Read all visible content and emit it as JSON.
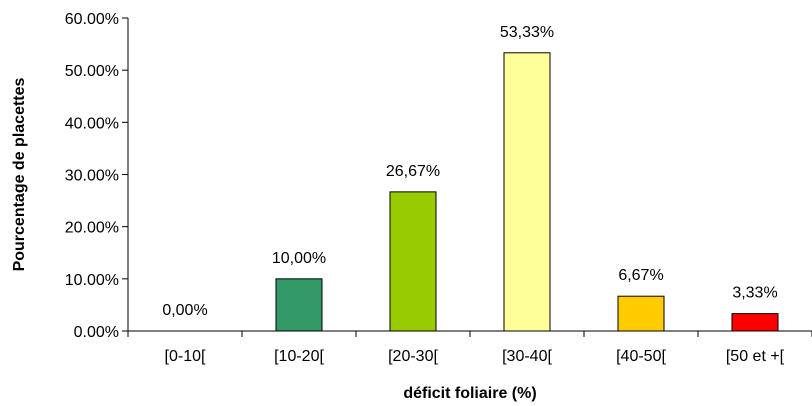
{
  "chart_data": {
    "type": "bar",
    "title": "",
    "xlabel": "déficit foliaire (%)",
    "ylabel": "Pourcentage de placettes",
    "categories": [
      "[0-10[",
      "[10-20[",
      "[20-30[",
      "[30-40[",
      "[40-50[",
      "[50 et +["
    ],
    "values": [
      0.0,
      10.0,
      26.67,
      53.33,
      6.67,
      3.33
    ],
    "data_labels": [
      "0,00%",
      "10,00%",
      "26,67%",
      "53,33%",
      "6,67%",
      "3,33%"
    ],
    "bar_colors": [
      "#ffffff",
      "#339966",
      "#99cc00",
      "#ffff99",
      "#ffcc00",
      "#ff0000"
    ],
    "ylim": [
      0,
      60
    ],
    "y_ticks": [
      0,
      10,
      20,
      30,
      40,
      50,
      60
    ],
    "y_tick_labels": [
      "0.00%",
      "10.00%",
      "20.00%",
      "30.00%",
      "40.00%",
      "50.00%",
      "60.00%"
    ],
    "grid": false,
    "legend": "none"
  }
}
